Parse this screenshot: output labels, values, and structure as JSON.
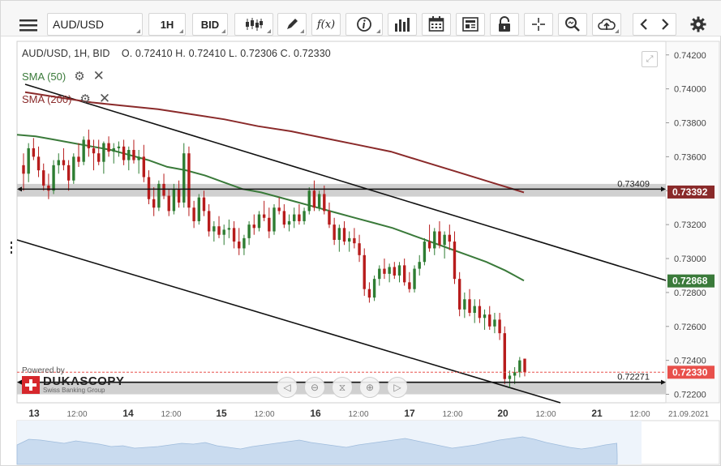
{
  "toolbar": {
    "menu_icon": "hamburger-icon",
    "symbol": "AUD/USD",
    "timeframe": "1H",
    "price_side": "BID",
    "icons": [
      "candlestick-icon",
      "pencil-icon",
      "function-icon",
      "info-icon",
      "bar-volume-icon",
      "calendar-icon",
      "news-icon",
      "lock-icon",
      "crosshair-icon",
      "zoom-icon",
      "cloud-upload-icon",
      "chevron-left-icon",
      "chevron-right-icon",
      "gear-icon"
    ]
  },
  "header": {
    "instrument_line": "AUD/USD, 1H, BID",
    "ohlc": "O. 0.72410 H. 0.72410 L. 0.72306 C. 0.72330"
  },
  "legend": {
    "sma50": "SMA (50)",
    "sma200": "SMA (200)"
  },
  "colors": {
    "bull": "#2e7d32",
    "bear": "#b71c1c",
    "sma50": "#3a7a3a",
    "sma200": "#8a2a2a",
    "trendline": "#111111",
    "last_price": "#e8504b"
  },
  "branding": {
    "powered_by": "Powered by",
    "name": "DUKASCOPY",
    "tagline": "Swiss Banking Group"
  },
  "chart_data": {
    "type": "candlestick",
    "title": "AUD/USD, 1H, BID",
    "ylim": [
      0.7215,
      0.7428
    ],
    "y_ticks": [
      "0.74200",
      "0.74000",
      "0.73800",
      "0.73600",
      "0.73400",
      "0.73200",
      "0.73000",
      "0.72800",
      "0.72600",
      "0.72400",
      "0.72200"
    ],
    "x_labels": [
      "13",
      "12:00",
      "14",
      "12:00",
      "15",
      "12:00",
      "16",
      "12:00",
      "17",
      "12:00",
      "20",
      "12:00",
      "21",
      "12:00",
      "21.09.2021"
    ],
    "price_tags": [
      {
        "label": "0.73392",
        "color": "#8a2a2a",
        "value": 0.73392
      },
      {
        "label": "0.72868",
        "color": "#3a7a3a",
        "value": 0.72868
      },
      {
        "label": "0.72330",
        "color": "#e8504b",
        "value": 0.7233
      }
    ],
    "horizontal_levels": [
      {
        "value": 0.73409,
        "label": "0.73409"
      },
      {
        "value": 0.72271,
        "label": "0.72271"
      }
    ],
    "candles": [
      [
        0.7355,
        0.7362,
        0.734,
        0.735
      ],
      [
        0.735,
        0.7368,
        0.7345,
        0.7365
      ],
      [
        0.7365,
        0.7371,
        0.7358,
        0.736
      ],
      [
        0.736,
        0.7366,
        0.7348,
        0.7352
      ],
      [
        0.7352,
        0.7356,
        0.734,
        0.7343
      ],
      [
        0.7343,
        0.735,
        0.7335,
        0.734
      ],
      [
        0.734,
        0.7358,
        0.7338,
        0.7355
      ],
      [
        0.7355,
        0.7362,
        0.735,
        0.7358
      ],
      [
        0.7358,
        0.7365,
        0.7352,
        0.7355
      ],
      [
        0.7355,
        0.7358,
        0.734,
        0.7346
      ],
      [
        0.7346,
        0.7362,
        0.7344,
        0.736
      ],
      [
        0.736,
        0.7368,
        0.7354,
        0.7357
      ],
      [
        0.7357,
        0.7372,
        0.7355,
        0.737
      ],
      [
        0.737,
        0.7376,
        0.736,
        0.7365
      ],
      [
        0.7365,
        0.737,
        0.7352,
        0.7362
      ],
      [
        0.7362,
        0.737,
        0.7355,
        0.7357
      ],
      [
        0.7357,
        0.7369,
        0.735,
        0.7368
      ],
      [
        0.7368,
        0.7372,
        0.736,
        0.7363
      ],
      [
        0.7363,
        0.7368,
        0.7356,
        0.7365
      ],
      [
        0.7365,
        0.7369,
        0.736,
        0.7366
      ],
      [
        0.7366,
        0.737,
        0.7355,
        0.7358
      ],
      [
        0.7358,
        0.7366,
        0.7352,
        0.7364
      ],
      [
        0.7364,
        0.737,
        0.7356,
        0.7358
      ],
      [
        0.7358,
        0.7364,
        0.735,
        0.736
      ],
      [
        0.736,
        0.7367,
        0.7345,
        0.7348
      ],
      [
        0.7348,
        0.7352,
        0.7332,
        0.7335
      ],
      [
        0.7335,
        0.7342,
        0.7325,
        0.733
      ],
      [
        0.733,
        0.7346,
        0.7328,
        0.7344
      ],
      [
        0.7344,
        0.735,
        0.7335,
        0.7337
      ],
      [
        0.7337,
        0.7341,
        0.7325,
        0.7328
      ],
      [
        0.7328,
        0.7344,
        0.7326,
        0.7341
      ],
      [
        0.7341,
        0.7346,
        0.733,
        0.7333
      ],
      [
        0.7333,
        0.7368,
        0.733,
        0.7362
      ],
      [
        0.7362,
        0.7366,
        0.7325,
        0.733
      ],
      [
        0.733,
        0.7334,
        0.7318,
        0.7322
      ],
      [
        0.7322,
        0.7338,
        0.732,
        0.7336
      ],
      [
        0.7336,
        0.734,
        0.7325,
        0.7328
      ],
      [
        0.7328,
        0.7332,
        0.7313,
        0.7316
      ],
      [
        0.7316,
        0.7322,
        0.731,
        0.7319
      ],
      [
        0.7319,
        0.7325,
        0.7312,
        0.7314
      ],
      [
        0.7314,
        0.732,
        0.7308,
        0.7317
      ],
      [
        0.7317,
        0.7323,
        0.7312,
        0.7318
      ],
      [
        0.7318,
        0.7322,
        0.7306,
        0.731
      ],
      [
        0.731,
        0.7318,
        0.7302,
        0.7306
      ],
      [
        0.7306,
        0.7314,
        0.7302,
        0.7312
      ],
      [
        0.7312,
        0.7322,
        0.7308,
        0.732
      ],
      [
        0.732,
        0.7326,
        0.7314,
        0.7318
      ],
      [
        0.7318,
        0.7328,
        0.7316,
        0.7326
      ],
      [
        0.7326,
        0.7334,
        0.7322,
        0.7324
      ],
      [
        0.7324,
        0.733,
        0.7312,
        0.7316
      ],
      [
        0.7316,
        0.7332,
        0.7314,
        0.733
      ],
      [
        0.733,
        0.7336,
        0.7326,
        0.7328
      ],
      [
        0.7328,
        0.7332,
        0.7318,
        0.732
      ],
      [
        0.732,
        0.7326,
        0.7316,
        0.7322
      ],
      [
        0.7322,
        0.733,
        0.7318,
        0.7326
      ],
      [
        0.7326,
        0.7332,
        0.732,
        0.7322
      ],
      [
        0.7322,
        0.733,
        0.732,
        0.7328
      ],
      [
        0.7328,
        0.7342,
        0.7326,
        0.734
      ],
      [
        0.734,
        0.7346,
        0.7328,
        0.733
      ],
      [
        0.733,
        0.734,
        0.7328,
        0.7338
      ],
      [
        0.7338,
        0.7343,
        0.7326,
        0.7328
      ],
      [
        0.7328,
        0.7333,
        0.7318,
        0.732
      ],
      [
        0.732,
        0.7324,
        0.7308,
        0.7311
      ],
      [
        0.7311,
        0.732,
        0.7304,
        0.7318
      ],
      [
        0.7318,
        0.7322,
        0.7308,
        0.731
      ],
      [
        0.731,
        0.7316,
        0.7304,
        0.7312
      ],
      [
        0.7312,
        0.7318,
        0.7306,
        0.7309
      ],
      [
        0.7309,
        0.7314,
        0.7298,
        0.7302
      ],
      [
        0.7302,
        0.7306,
        0.7278,
        0.7282
      ],
      [
        0.7282,
        0.7286,
        0.7274,
        0.7277
      ],
      [
        0.7277,
        0.729,
        0.7275,
        0.7288
      ],
      [
        0.7288,
        0.7296,
        0.7284,
        0.7294
      ],
      [
        0.7294,
        0.73,
        0.7288,
        0.7291
      ],
      [
        0.7291,
        0.7297,
        0.7286,
        0.7295
      ],
      [
        0.7295,
        0.7298,
        0.7288,
        0.729
      ],
      [
        0.729,
        0.7298,
        0.7286,
        0.7296
      ],
      [
        0.7296,
        0.73,
        0.7284,
        0.7286
      ],
      [
        0.7286,
        0.7292,
        0.728,
        0.7282
      ],
      [
        0.7282,
        0.7296,
        0.728,
        0.7294
      ],
      [
        0.7294,
        0.7302,
        0.729,
        0.7298
      ],
      [
        0.7298,
        0.7312,
        0.7296,
        0.731
      ],
      [
        0.731,
        0.732,
        0.7304,
        0.7306
      ],
      [
        0.7306,
        0.7318,
        0.7302,
        0.7316
      ],
      [
        0.7316,
        0.7322,
        0.7306,
        0.7308
      ],
      [
        0.7308,
        0.7316,
        0.73,
        0.7314
      ],
      [
        0.7314,
        0.732,
        0.7305,
        0.731
      ],
      [
        0.731,
        0.7316,
        0.7285,
        0.7288
      ],
      [
        0.7288,
        0.7292,
        0.7266,
        0.727
      ],
      [
        0.727,
        0.728,
        0.7265,
        0.7276
      ],
      [
        0.7276,
        0.7282,
        0.7266,
        0.7268
      ],
      [
        0.7268,
        0.7276,
        0.7262,
        0.7272
      ],
      [
        0.7272,
        0.7276,
        0.7262,
        0.7265
      ],
      [
        0.7265,
        0.727,
        0.7258,
        0.7267
      ],
      [
        0.7267,
        0.7272,
        0.7258,
        0.726
      ],
      [
        0.726,
        0.7268,
        0.7256,
        0.7264
      ],
      [
        0.7264,
        0.7268,
        0.7252,
        0.7256
      ],
      [
        0.7256,
        0.726,
        0.7226,
        0.7229
      ],
      [
        0.7229,
        0.7234,
        0.7224,
        0.7231
      ],
      [
        0.7231,
        0.7236,
        0.7226,
        0.7233
      ],
      [
        0.7233,
        0.7242,
        0.723,
        0.724
      ],
      [
        0.7241,
        0.7241,
        0.72306,
        0.7233
      ]
    ],
    "sma50": [
      0.7373,
      0.7372,
      0.737,
      0.7368,
      0.7366,
      0.7364,
      0.7361,
      0.7358,
      0.7354,
      0.7352,
      0.7349,
      0.7345,
      0.7341,
      0.7339,
      0.7336,
      0.7333,
      0.733,
      0.7327,
      0.7324,
      0.7321,
      0.7318,
      0.7314,
      0.731,
      0.7306,
      0.7302,
      0.7298,
      0.7293,
      0.7287
    ],
    "sma200": [
      0.7398,
      0.7395,
      0.7392,
      0.739,
      0.7388,
      0.7385,
      0.7382,
      0.7378,
      0.7375,
      0.7371,
      0.7367,
      0.7363,
      0.7357,
      0.7351,
      0.7345,
      0.7339
    ]
  }
}
